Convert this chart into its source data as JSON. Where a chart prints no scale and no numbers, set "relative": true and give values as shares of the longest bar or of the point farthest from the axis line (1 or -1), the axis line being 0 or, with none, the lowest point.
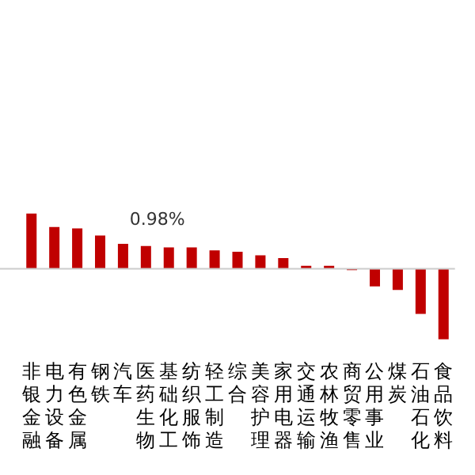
{
  "chart_data": {
    "type": "bar",
    "relative": true,
    "color": "#c00000",
    "categories": [
      "非银金融",
      "电力设备",
      "有色金属",
      "钢铁",
      "汽车",
      "医药生物",
      "基础化工",
      "纺织服饰",
      "轻工制造",
      "综合",
      "美容护理",
      "家用电器",
      "交通运输",
      "农林牧渔",
      "商贸零售",
      "公用事业",
      "煤炭",
      "石油石化",
      "食品饮料"
    ],
    "values": [
      0.78,
      0.59,
      0.57,
      0.47,
      0.35,
      0.32,
      0.3,
      0.3,
      0.26,
      0.24,
      0.19,
      0.15,
      0.04,
      0.04,
      -0.02,
      -0.25,
      -0.3,
      -0.64,
      -1
    ],
    "annotations": [
      "0.98%"
    ],
    "grid": false,
    "legend": false
  }
}
